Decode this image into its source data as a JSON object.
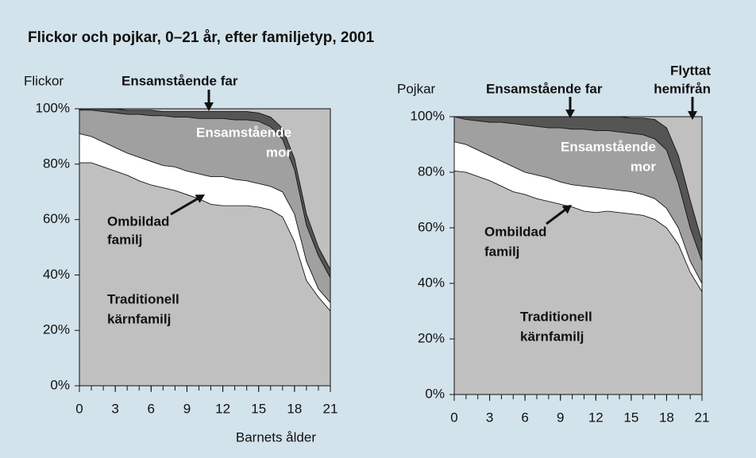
{
  "title": "Flickor och pojkar, 0–21 år, efter familjetyp, 2001",
  "chart_data": [
    {
      "type": "area",
      "stacked": true,
      "y_label": "Flickor",
      "x_label": "Barnets ålder",
      "x": [
        0,
        1,
        2,
        3,
        4,
        5,
        6,
        7,
        8,
        9,
        10,
        11,
        12,
        13,
        14,
        15,
        16,
        17,
        18,
        19,
        20,
        21
      ],
      "xlim": [
        0,
        21
      ],
      "xticks": [
        0,
        3,
        6,
        9,
        12,
        15,
        18,
        21
      ],
      "ylim": [
        0,
        100
      ],
      "yticks": [
        {
          "value": 0,
          "label": "0%"
        },
        {
          "value": 20,
          "label": "20%"
        },
        {
          "value": 40,
          "label": "40%"
        },
        {
          "value": 60,
          "label": "60%"
        },
        {
          "value": 80,
          "label": "80%"
        },
        {
          "value": 100,
          "label": "100%"
        }
      ],
      "series": [
        {
          "name": "Traditionell kärnfamilj",
          "color": "#c0c0c0",
          "values": [
            80.5,
            80.5,
            79,
            77.5,
            76,
            74,
            72.5,
            71.5,
            70.5,
            69,
            67.5,
            65.5,
            65,
            65,
            65,
            64.5,
            63.5,
            61,
            52,
            38,
            32,
            27
          ]
        },
        {
          "name": "Ombildad familj",
          "color": "#ffffff",
          "values": [
            10.5,
            9.5,
            9,
            8.5,
            8,
            8.5,
            8.5,
            8,
            8.5,
            8.5,
            9,
            10,
            10.5,
            9.5,
            9,
            8.5,
            8.5,
            9,
            10,
            7,
            3,
            3
          ]
        },
        {
          "name": "Ensamstående mor",
          "color": "#a0a0a0",
          "values": [
            8.5,
            9.5,
            11,
            12.5,
            14,
            15.5,
            16.5,
            18,
            18,
            19.5,
            20,
            21,
            21,
            21.5,
            22,
            22.5,
            21.5,
            19,
            16,
            13,
            12,
            9
          ]
        },
        {
          "name": "Ensamstående far",
          "color": "#555555",
          "values": [
            0.5,
            0.5,
            1,
            1.5,
            1.5,
            1.5,
            2,
            1.5,
            2,
            2,
            2.5,
            2.5,
            2.5,
            3,
            3,
            3,
            3.5,
            4,
            4,
            4,
            3,
            3
          ]
        },
        {
          "name": "Flyttat hemifrån",
          "color": "#c0c0c0",
          "values": [
            0,
            0,
            0,
            0,
            0.5,
            0.5,
            0.5,
            1,
            1,
            1,
            1,
            1,
            1,
            1,
            1,
            1.5,
            3,
            7,
            18,
            38,
            50,
            58
          ]
        }
      ],
      "annotations": [
        {
          "lines": [
            "Ensamstående far"
          ]
        },
        {
          "lines": [
            "Ensamstående",
            "mor"
          ]
        },
        {
          "lines": [
            "Ombildad",
            "familj"
          ]
        },
        {
          "lines": [
            "Traditionell",
            "kärnfamilj"
          ]
        }
      ]
    },
    {
      "type": "area",
      "stacked": true,
      "y_label": "Pojkar",
      "x": [
        0,
        1,
        2,
        3,
        4,
        5,
        6,
        7,
        8,
        9,
        10,
        11,
        12,
        13,
        14,
        15,
        16,
        17,
        18,
        19,
        20,
        21
      ],
      "xlim": [
        0,
        21
      ],
      "xticks": [
        0,
        3,
        6,
        9,
        12,
        15,
        18,
        21
      ],
      "ylim": [
        0,
        100
      ],
      "yticks": [
        {
          "value": 0,
          "label": "0%"
        },
        {
          "value": 20,
          "label": "20%"
        },
        {
          "value": 40,
          "label": "40%"
        },
        {
          "value": 60,
          "label": "60%"
        },
        {
          "value": 80,
          "label": "80%"
        },
        {
          "value": 100,
          "label": "100%"
        }
      ],
      "series": [
        {
          "name": "Traditionell kärnfamilj",
          "color": "#c0c0c0",
          "values": [
            80.5,
            80,
            78.5,
            77,
            75,
            73,
            72,
            70.5,
            69.5,
            68.5,
            67.5,
            66,
            65.5,
            66,
            65.5,
            65,
            64.5,
            63,
            60,
            54,
            44,
            37
          ]
        },
        {
          "name": "Ombildad familj",
          "color": "#ffffff",
          "values": [
            10.5,
            10,
            9.5,
            9,
            9,
            9,
            8,
            8.5,
            8.5,
            8,
            8,
            9,
            9,
            8,
            8,
            8,
            7.5,
            7.5,
            7,
            6,
            4,
            3
          ]
        },
        {
          "name": "Ensamstående mor",
          "color": "#a0a0a0",
          "values": [
            9,
            9,
            10.5,
            12,
            14,
            15.5,
            17,
            17.5,
            18,
            19.5,
            20,
            20.5,
            20.5,
            21,
            21,
            21,
            21.5,
            21.5,
            21,
            16,
            12,
            8
          ]
        },
        {
          "name": "Ensamstående far",
          "color": "#555555",
          "values": [
            0,
            1,
            1.5,
            2,
            2,
            2.5,
            3,
            3.5,
            4,
            4,
            4.5,
            4.5,
            5,
            5,
            5.5,
            5.5,
            6,
            7,
            8,
            10,
            10,
            7
          ]
        },
        {
          "name": "Flyttat hemifrån",
          "color": "#c0c0c0",
          "values": [
            0,
            0,
            0,
            0,
            0,
            0,
            0,
            0,
            0,
            0,
            0,
            0,
            0,
            0,
            0,
            0.5,
            0.5,
            1,
            4,
            14,
            30,
            45
          ]
        }
      ],
      "annotations": [
        {
          "lines": [
            "Ensamstående far"
          ]
        },
        {
          "lines": [
            "Flyttat",
            "hemifrån"
          ]
        },
        {
          "lines": [
            "Ensamstående",
            "mor"
          ]
        },
        {
          "lines": [
            "Ombildad",
            "familj"
          ]
        },
        {
          "lines": [
            "Traditionell",
            "kärnfamilj"
          ]
        }
      ]
    }
  ]
}
